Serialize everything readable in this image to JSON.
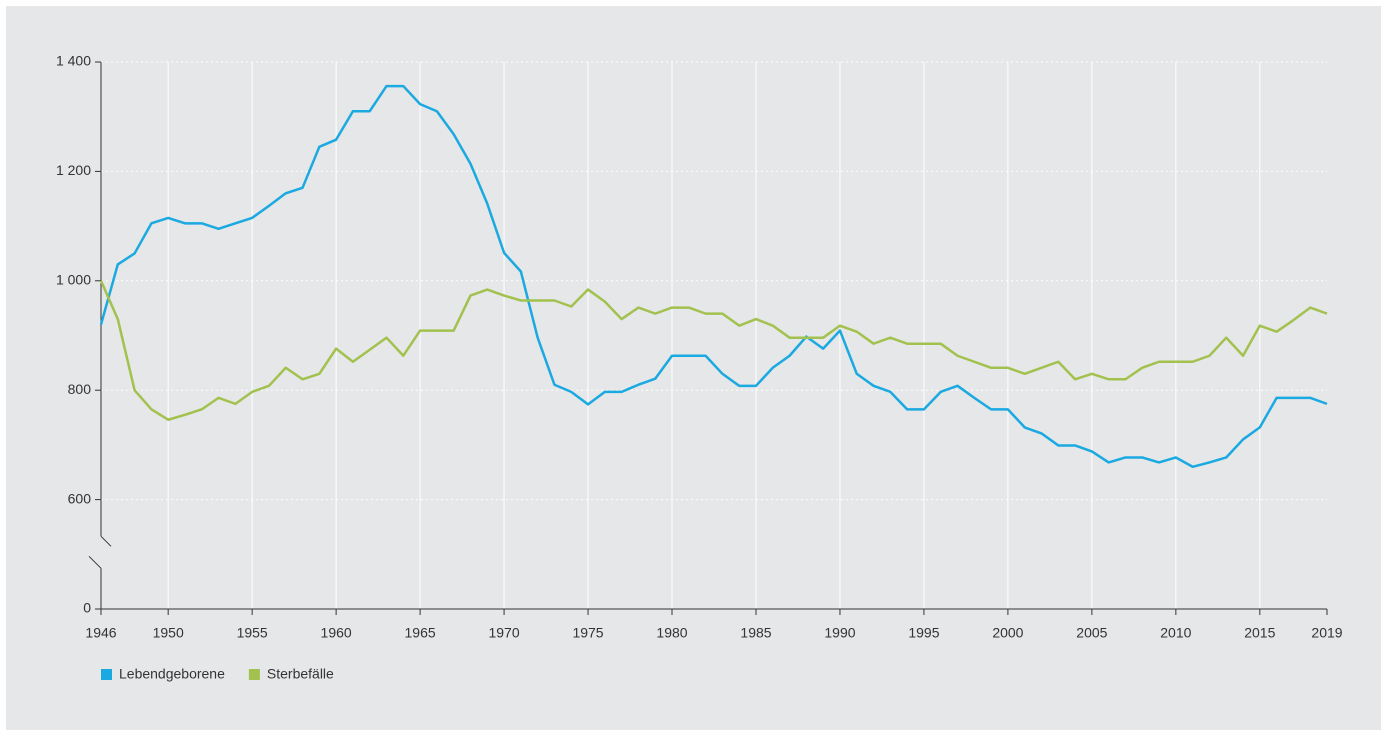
{
  "chart_data": {
    "type": "line",
    "x": [
      1946,
      1947,
      1948,
      1949,
      1950,
      1951,
      1952,
      1953,
      1954,
      1955,
      1956,
      1957,
      1958,
      1959,
      1960,
      1961,
      1962,
      1963,
      1964,
      1965,
      1966,
      1967,
      1968,
      1969,
      1970,
      1971,
      1972,
      1973,
      1974,
      1975,
      1976,
      1977,
      1978,
      1979,
      1980,
      1981,
      1982,
      1983,
      1984,
      1985,
      1986,
      1987,
      1988,
      1989,
      1990,
      1991,
      1992,
      1993,
      1994,
      1995,
      1996,
      1997,
      1998,
      1999,
      2000,
      2001,
      2002,
      2003,
      2004,
      2005,
      2006,
      2007,
      2008,
      2009,
      2010,
      2011,
      2012,
      2013,
      2014,
      2015,
      2016,
      2017,
      2018,
      2019
    ],
    "series": [
      {
        "name": "Lebendgeborene",
        "color": "#1aa9e1",
        "values": [
          920,
          1030,
          1050,
          1105,
          1115,
          1105,
          1105,
          1095,
          1105,
          1115,
          1137,
          1160,
          1170,
          1245,
          1258,
          1310,
          1310,
          1356,
          1356,
          1323,
          1310,
          1268,
          1214,
          1141,
          1051,
          1017,
          896,
          810,
          797,
          774,
          797,
          797,
          810,
          821,
          863,
          863,
          863,
          830,
          808,
          808,
          841,
          863,
          898,
          876,
          909,
          830,
          808,
          797,
          765,
          765,
          797,
          808,
          786,
          765,
          765,
          732,
          721,
          699,
          699,
          688,
          668,
          677,
          677,
          668,
          677,
          660,
          668,
          677,
          710,
          732,
          786,
          786,
          786,
          775
        ]
      },
      {
        "name": "Sterbefälle",
        "color": "#a2c14e",
        "values": [
          1000,
          930,
          800,
          765,
          746,
          755,
          765,
          786,
          775,
          797,
          808,
          841,
          820,
          830,
          876,
          852,
          874,
          896,
          863,
          909,
          909,
          909,
          973,
          984,
          973,
          964,
          964,
          964,
          953,
          984,
          962,
          930,
          951,
          940,
          951,
          951,
          940,
          940,
          918,
          930,
          918,
          896,
          896,
          896,
          918,
          907,
          885,
          896,
          885,
          885,
          885,
          863,
          852,
          841,
          841,
          830,
          841,
          852,
          820,
          830,
          820,
          820,
          841,
          852,
          852,
          852,
          863,
          896,
          863,
          918,
          907,
          928,
          951,
          940
        ]
      }
    ],
    "xlim": [
      1946,
      2019
    ],
    "xticks": [
      1946,
      1950,
      1955,
      1960,
      1965,
      1970,
      1975,
      1980,
      1985,
      1990,
      1995,
      2000,
      2005,
      2010,
      2015,
      2019
    ],
    "ylim": [
      0,
      1400
    ],
    "yticks": [
      0,
      600,
      800,
      {
        "value": 1000,
        "label": "1 000"
      },
      {
        "value": 1200,
        "label": "1 200"
      },
      {
        "value": 1400,
        "label": "1 400"
      }
    ],
    "axis_break": true,
    "grid": true,
    "legend": "bottom-left"
  }
}
